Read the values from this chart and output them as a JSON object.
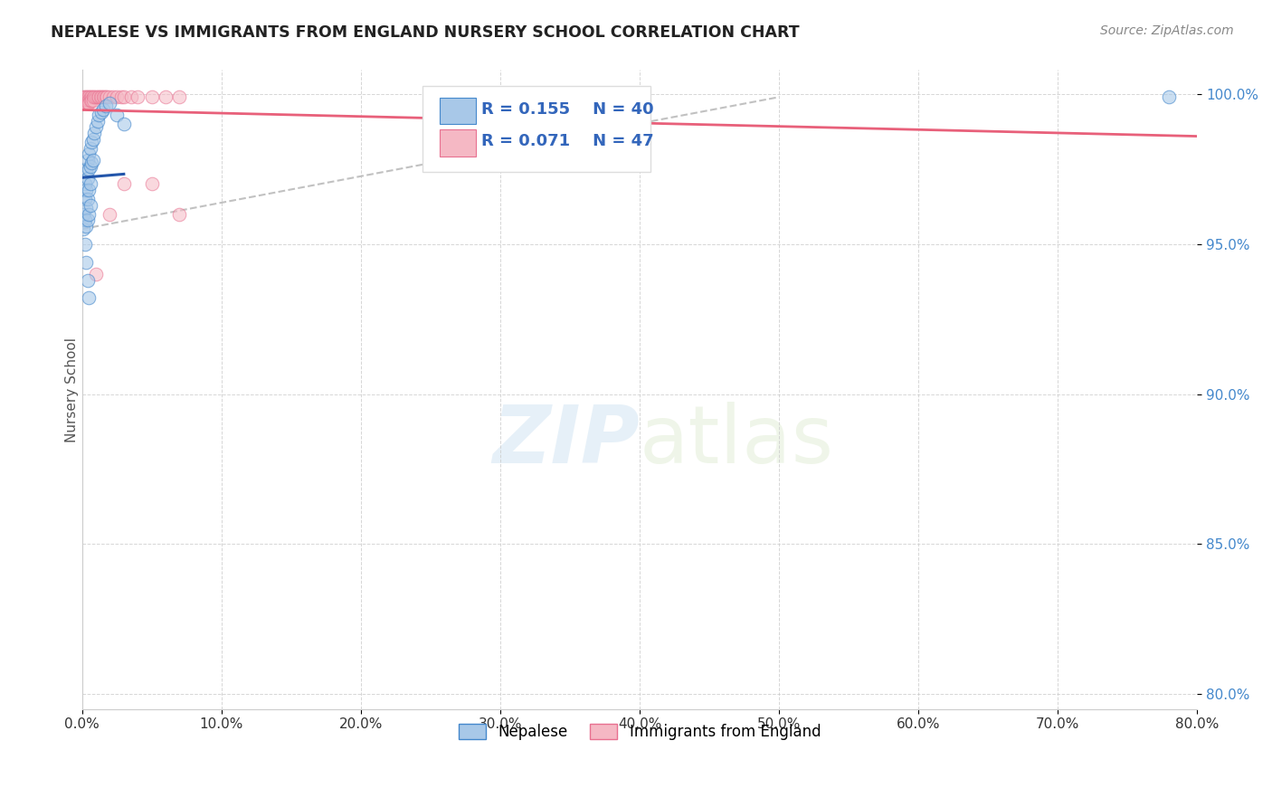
{
  "title": "NEPALESE VS IMMIGRANTS FROM ENGLAND NURSERY SCHOOL CORRELATION CHART",
  "source": "Source: ZipAtlas.com",
  "ylabel": "Nursery School",
  "legend_r_blue": "R = 0.155",
  "legend_n_blue": "N = 40",
  "legend_r_pink": "R = 0.071",
  "legend_n_pink": "N = 47",
  "legend_label_blue": "Nepalese",
  "legend_label_pink": "Immigrants from England",
  "watermark_zip": "ZIP",
  "watermark_atlas": "atlas",
  "blue_color": "#a8c8e8",
  "pink_color": "#f5b8c4",
  "blue_edge_color": "#4488cc",
  "pink_edge_color": "#e87090",
  "blue_line_color": "#2255aa",
  "pink_line_color": "#e8607a",
  "gray_dash_color": "#bbbbbb",
  "xlim": [
    0.0,
    0.8
  ],
  "ylim": [
    0.795,
    1.008
  ],
  "yticks": [
    0.8,
    0.85,
    0.9,
    0.95,
    1.0
  ],
  "ytick_labels": [
    "80.0%",
    "85.0%",
    "90.0%",
    "95.0%",
    "100.0%"
  ],
  "xticks": [
    0.0,
    0.1,
    0.2,
    0.3,
    0.4,
    0.5,
    0.6,
    0.7,
    0.8
  ],
  "blue_x": [
    0.001,
    0.001,
    0.002,
    0.002,
    0.002,
    0.003,
    0.003,
    0.003,
    0.003,
    0.004,
    0.004,
    0.004,
    0.004,
    0.005,
    0.005,
    0.005,
    0.005,
    0.006,
    0.006,
    0.006,
    0.006,
    0.007,
    0.007,
    0.008,
    0.008,
    0.009,
    0.01,
    0.011,
    0.012,
    0.014,
    0.015,
    0.017,
    0.02,
    0.025,
    0.03,
    0.78,
    0.002,
    0.003,
    0.004,
    0.005
  ],
  "blue_y": [
    0.96,
    0.955,
    0.97,
    0.965,
    0.958,
    0.975,
    0.968,
    0.962,
    0.956,
    0.978,
    0.972,
    0.965,
    0.958,
    0.98,
    0.975,
    0.968,
    0.96,
    0.982,
    0.976,
    0.97,
    0.963,
    0.984,
    0.977,
    0.985,
    0.978,
    0.987,
    0.989,
    0.991,
    0.993,
    0.994,
    0.995,
    0.996,
    0.997,
    0.993,
    0.99,
    0.999,
    0.95,
    0.944,
    0.938,
    0.932
  ],
  "pink_x": [
    0.001,
    0.001,
    0.001,
    0.002,
    0.002,
    0.002,
    0.003,
    0.003,
    0.003,
    0.004,
    0.004,
    0.004,
    0.005,
    0.005,
    0.005,
    0.006,
    0.006,
    0.007,
    0.007,
    0.008,
    0.008,
    0.009,
    0.01,
    0.011,
    0.012,
    0.013,
    0.014,
    0.015,
    0.016,
    0.017,
    0.018,
    0.02,
    0.022,
    0.025,
    0.028,
    0.03,
    0.035,
    0.04,
    0.05,
    0.06,
    0.07,
    0.35,
    0.01,
    0.02,
    0.03,
    0.05,
    0.07
  ],
  "pink_y": [
    0.999,
    0.998,
    0.997,
    0.999,
    0.998,
    0.997,
    0.999,
    0.998,
    0.997,
    0.999,
    0.998,
    0.997,
    0.999,
    0.998,
    0.997,
    0.999,
    0.998,
    0.999,
    0.998,
    0.999,
    0.998,
    0.999,
    0.999,
    0.999,
    0.999,
    0.999,
    0.999,
    0.999,
    0.999,
    0.999,
    0.999,
    0.999,
    0.999,
    0.999,
    0.999,
    0.999,
    0.999,
    0.999,
    0.999,
    0.999,
    0.999,
    0.999,
    0.94,
    0.96,
    0.97,
    0.97,
    0.96
  ]
}
